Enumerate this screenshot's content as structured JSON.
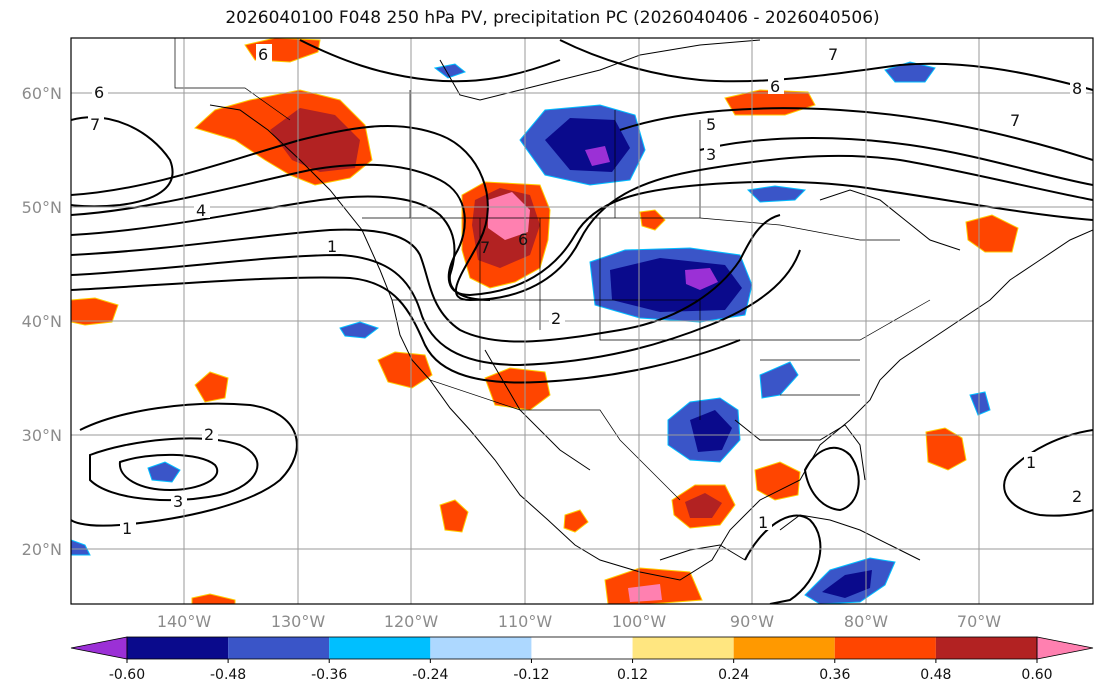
{
  "title": "2026040100 F048 250 hPa PV, precipitation PC (2026040406 - 2026040506)",
  "map": {
    "lat_labels": [
      "60°N",
      "50°N",
      "40°N",
      "30°N",
      "20°N"
    ],
    "lon_labels": [
      "140°W",
      "130°W",
      "120°W",
      "110°W",
      "100°W",
      "90°W",
      "80°W",
      "70°W"
    ],
    "contour_labels": [
      "6",
      "6",
      "7",
      "4",
      "7",
      "1",
      "7",
      "6",
      "5",
      "3",
      "6",
      "7",
      "8",
      "2",
      "2",
      "3",
      "1",
      "1",
      "2",
      "1"
    ]
  },
  "colorbar": {
    "ticks": [
      "-0.60",
      "-0.48",
      "-0.36",
      "-0.24",
      "-0.12",
      "0.12",
      "0.24",
      "0.36",
      "0.48",
      "0.60"
    ],
    "colors": [
      "#9b30d6",
      "#0a0a8c",
      "#3a55c8",
      "#00bfff",
      "#add8ff",
      "#ffffff",
      "#ffe680",
      "#ff9900",
      "#ff4500",
      "#b22222",
      "#ff80b0"
    ]
  },
  "colors": {
    "grid": "#9a9a9a",
    "coast": "#000000",
    "contour": "#000000",
    "axis_label": "#8c8c8c"
  }
}
